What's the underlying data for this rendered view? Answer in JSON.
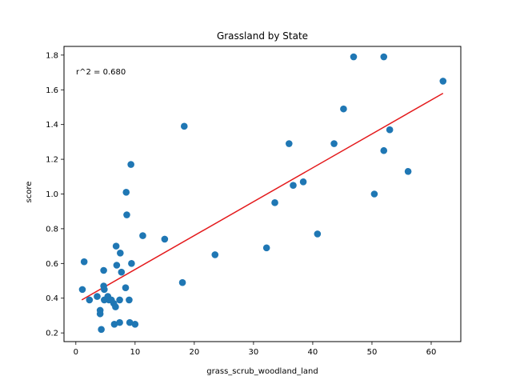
{
  "chart_data": {
    "type": "scatter",
    "title": "Grassland by State",
    "xlabel": "grass_scrub_woodland_land",
    "ylabel": "score",
    "xlim": [
      -2,
      65
    ],
    "ylim": [
      0.15,
      1.85
    ],
    "xticks": [
      0,
      10,
      20,
      30,
      40,
      50,
      60
    ],
    "yticks": [
      0.2,
      0.4,
      0.6,
      0.8,
      1.0,
      1.2,
      1.4,
      1.6,
      1.8
    ],
    "grid": false,
    "annotation": "r^2 = 0.680",
    "point_color": "#1f77b4",
    "line_color": "#e41a1c",
    "fit_line": {
      "x": [
        1.0,
        62.0
      ],
      "y": [
        0.39,
        1.58
      ]
    },
    "points": [
      {
        "x": 1.1,
        "y": 0.45
      },
      {
        "x": 1.4,
        "y": 0.61
      },
      {
        "x": 2.3,
        "y": 0.39
      },
      {
        "x": 3.6,
        "y": 0.41
      },
      {
        "x": 4.1,
        "y": 0.33
      },
      {
        "x": 4.1,
        "y": 0.31
      },
      {
        "x": 4.3,
        "y": 0.22
      },
      {
        "x": 4.7,
        "y": 0.56
      },
      {
        "x": 4.7,
        "y": 0.47
      },
      {
        "x": 4.8,
        "y": 0.45
      },
      {
        "x": 4.8,
        "y": 0.39
      },
      {
        "x": 5.4,
        "y": 0.41
      },
      {
        "x": 5.6,
        "y": 0.39
      },
      {
        "x": 6.0,
        "y": 0.39
      },
      {
        "x": 6.4,
        "y": 0.37
      },
      {
        "x": 6.5,
        "y": 0.25
      },
      {
        "x": 6.7,
        "y": 0.35
      },
      {
        "x": 6.8,
        "y": 0.7
      },
      {
        "x": 6.9,
        "y": 0.59
      },
      {
        "x": 7.4,
        "y": 0.39
      },
      {
        "x": 7.4,
        "y": 0.26
      },
      {
        "x": 7.5,
        "y": 0.66
      },
      {
        "x": 7.7,
        "y": 0.55
      },
      {
        "x": 8.4,
        "y": 0.46
      },
      {
        "x": 8.5,
        "y": 1.01
      },
      {
        "x": 8.6,
        "y": 0.88
      },
      {
        "x": 9.0,
        "y": 0.39
      },
      {
        "x": 9.1,
        "y": 0.26
      },
      {
        "x": 9.3,
        "y": 1.17
      },
      {
        "x": 9.4,
        "y": 0.6
      },
      {
        "x": 10.0,
        "y": 0.25
      },
      {
        "x": 11.3,
        "y": 0.76
      },
      {
        "x": 15.0,
        "y": 0.74
      },
      {
        "x": 18.0,
        "y": 0.49
      },
      {
        "x": 18.3,
        "y": 1.39
      },
      {
        "x": 23.5,
        "y": 0.65
      },
      {
        "x": 32.2,
        "y": 0.69
      },
      {
        "x": 33.6,
        "y": 0.95
      },
      {
        "x": 36.0,
        "y": 1.29
      },
      {
        "x": 36.7,
        "y": 1.05
      },
      {
        "x": 38.4,
        "y": 1.07
      },
      {
        "x": 40.8,
        "y": 0.77
      },
      {
        "x": 43.6,
        "y": 1.29
      },
      {
        "x": 45.2,
        "y": 1.49
      },
      {
        "x": 46.9,
        "y": 1.79
      },
      {
        "x": 50.4,
        "y": 1.0
      },
      {
        "x": 52.0,
        "y": 1.79
      },
      {
        "x": 52.0,
        "y": 1.25
      },
      {
        "x": 53.0,
        "y": 1.37
      },
      {
        "x": 56.1,
        "y": 1.13
      },
      {
        "x": 62.0,
        "y": 1.65
      }
    ]
  }
}
